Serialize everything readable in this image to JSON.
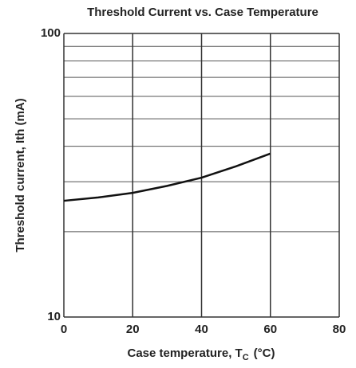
{
  "chart_data": {
    "type": "line",
    "title": "Threshold Current vs. Case Temperature",
    "y_label": "Threshold current,  Ith  (mA)",
    "x_label_main": "Case temperature,  T",
    "x_label_sub": "C",
    "x_label_unit": "(°C)",
    "x": [
      0,
      10,
      20,
      30,
      40,
      50,
      60
    ],
    "series": [
      {
        "values": [
          25.7,
          26.4,
          27.4,
          29,
          31,
          34,
          37.7
        ],
        "color": "#111"
      }
    ],
    "xlim": [
      0,
      80
    ],
    "xticks": [
      0,
      20,
      40,
      60,
      80
    ],
    "ylim": [
      10,
      100
    ],
    "yticks": [
      10,
      100
    ],
    "minor_yticks": [
      20,
      30,
      40,
      50,
      60,
      70,
      80,
      90
    ],
    "ylog": true,
    "grid": true
  }
}
